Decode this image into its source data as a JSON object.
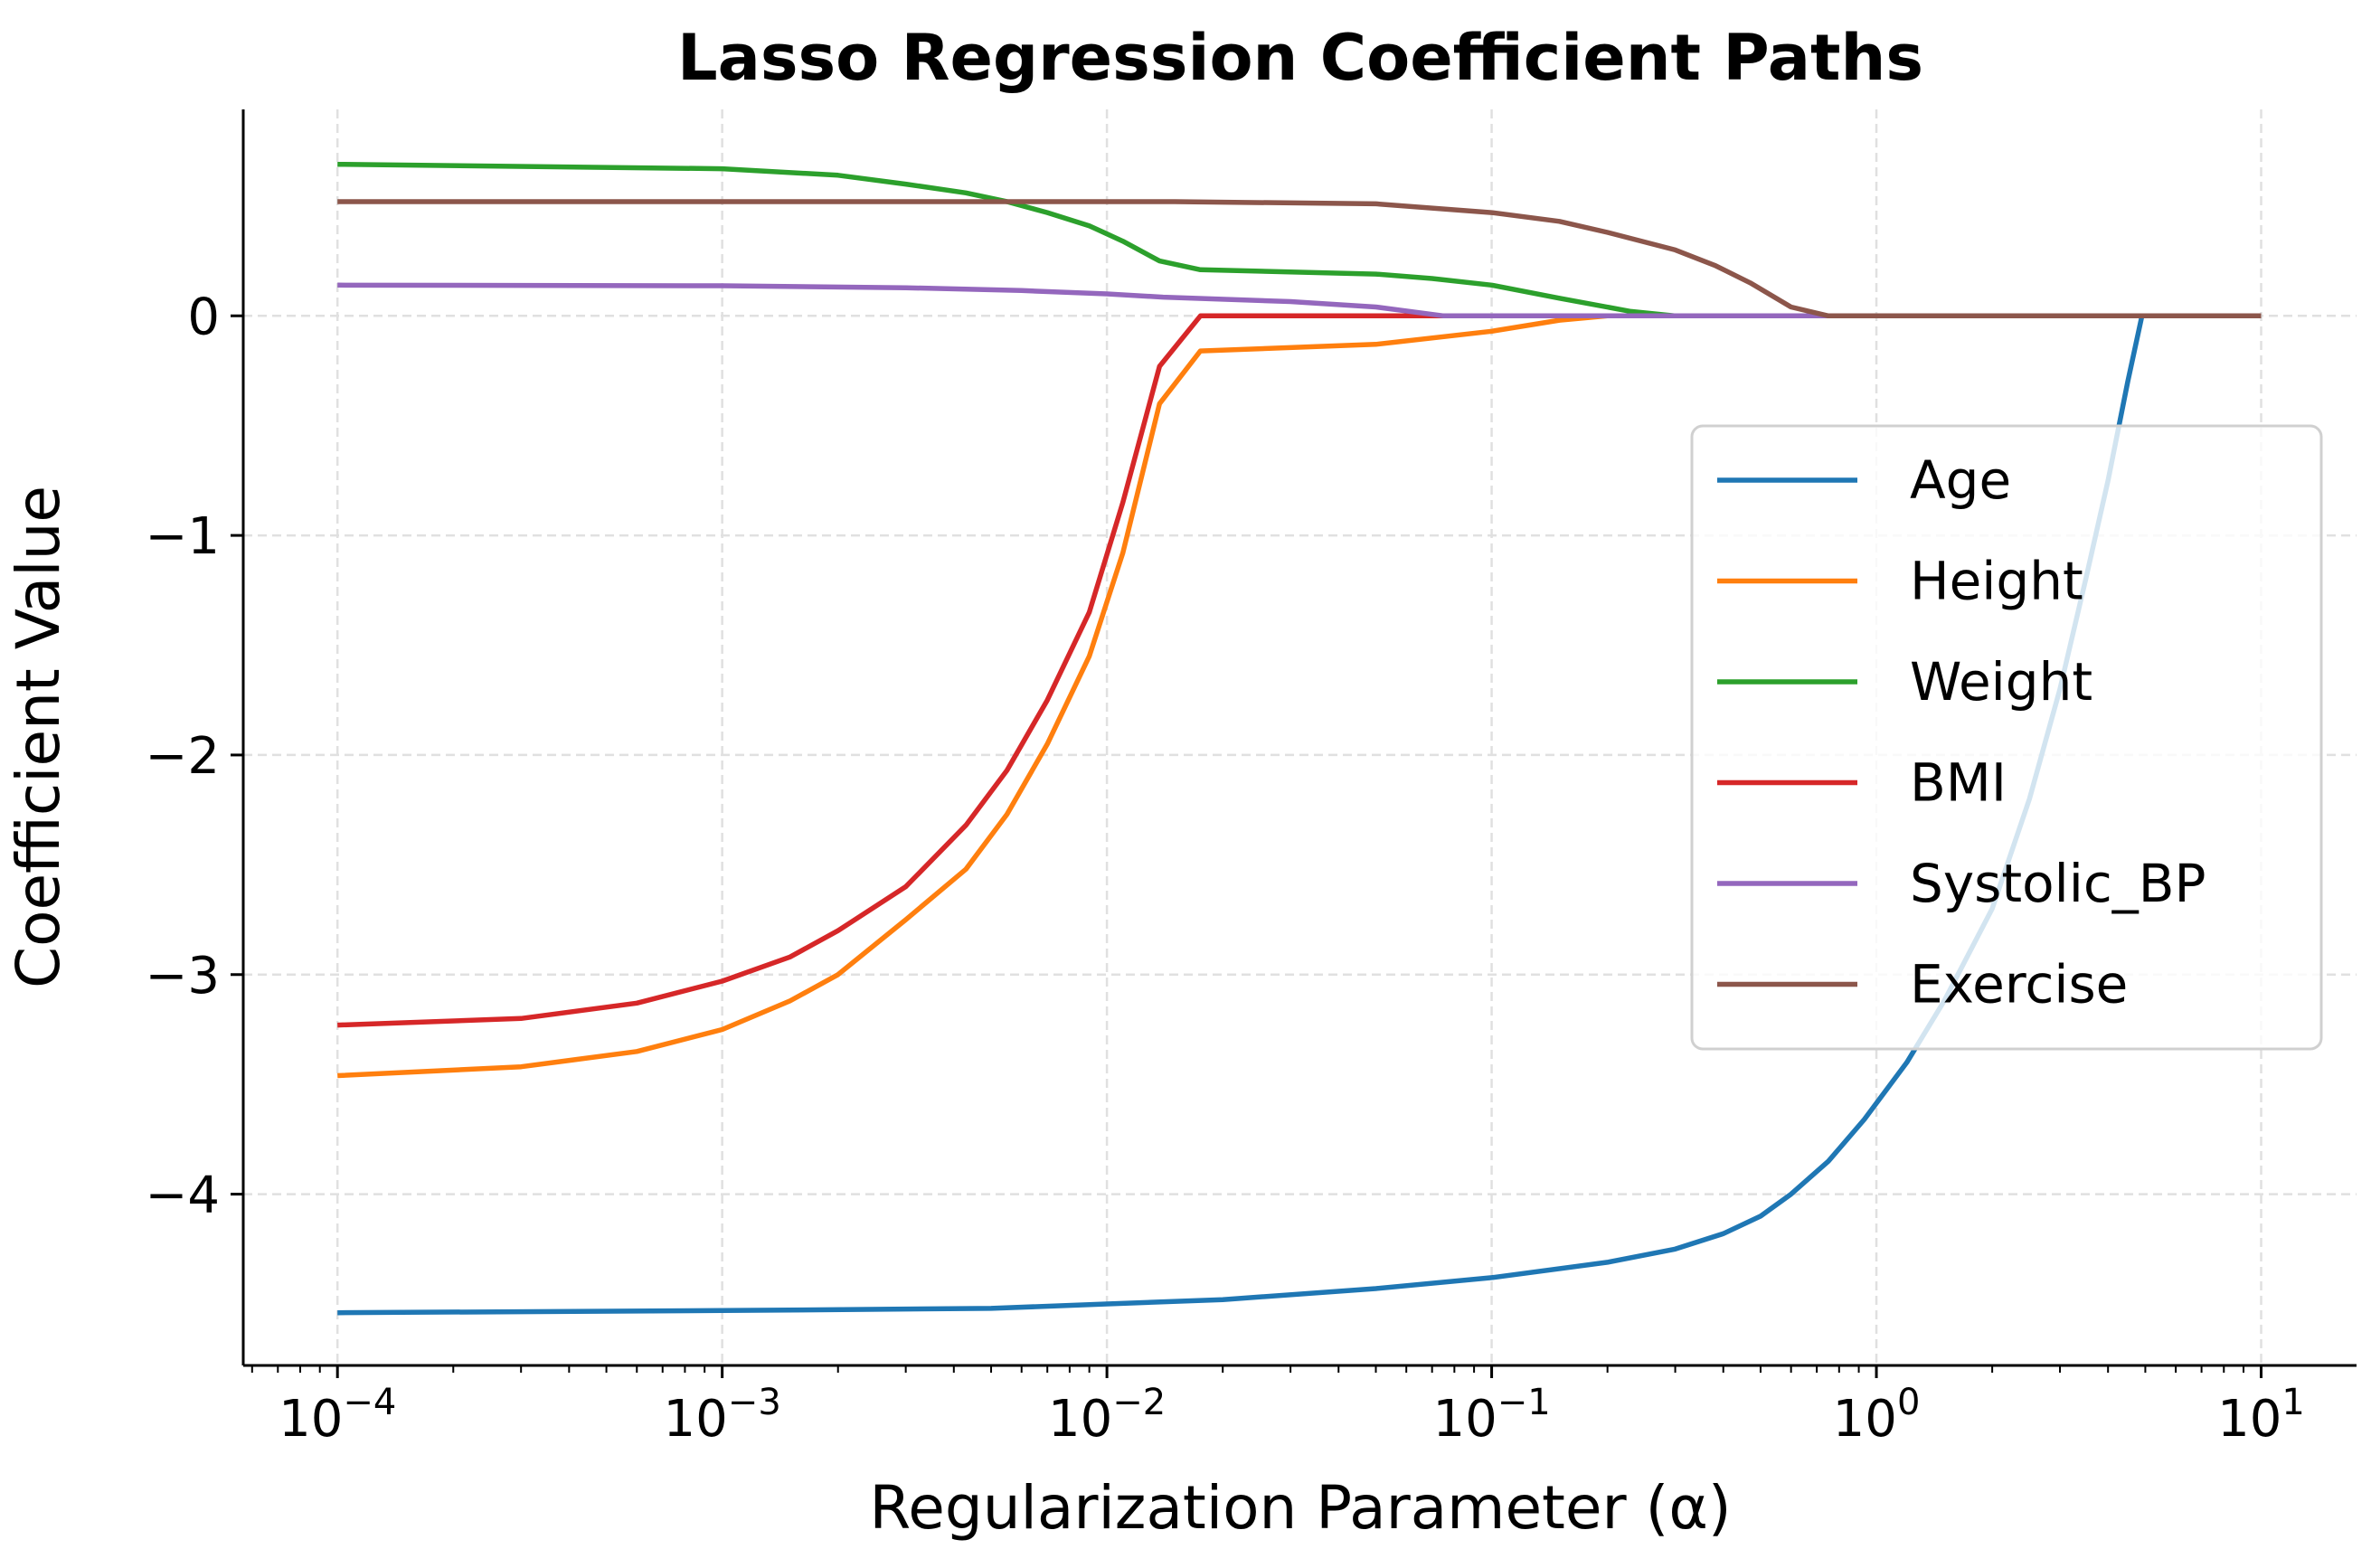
{
  "chart_data": {
    "type": "line",
    "title": "Lasso Regression Coefficient Paths",
    "xlabel": "Regularization Parameter (α)",
    "ylabel": "Coefficient Value",
    "xscale": "log",
    "xlim": [
      5.69e-05,
      17.7
    ],
    "ylim": [
      -4.78,
      0.94
    ],
    "xticks": [
      0.0001,
      0.001,
      0.01,
      0.1,
      1,
      10
    ],
    "xtick_labels": [
      {
        "base": "10",
        "exp": "−4"
      },
      {
        "base": "10",
        "exp": "−3"
      },
      {
        "base": "10",
        "exp": "−2"
      },
      {
        "base": "10",
        "exp": "−1"
      },
      {
        "base": "10",
        "exp": "0"
      },
      {
        "base": "10",
        "exp": "1"
      }
    ],
    "yticks": [
      0,
      -1,
      -2,
      -3,
      -4
    ],
    "ytick_labels": [
      "0",
      "−1",
      "−2",
      "−3",
      "−4"
    ],
    "grid": true,
    "legend_position": "center-right",
    "series": [
      {
        "name": "Age",
        "color": "#1f77b4",
        "x": [
          0.0001,
          0.001,
          0.005,
          0.01,
          0.02,
          0.05,
          0.1,
          0.2,
          0.3,
          0.4,
          0.5,
          0.6,
          0.75,
          0.93,
          1.2,
          1.5,
          2,
          2.5,
          3,
          3.5,
          4,
          4.5,
          4.9,
          10
        ],
        "y": [
          -4.54,
          -4.53,
          -4.52,
          -4.5,
          -4.48,
          -4.43,
          -4.38,
          -4.31,
          -4.25,
          -4.18,
          -4.1,
          -4.0,
          -3.85,
          -3.66,
          -3.4,
          -3.12,
          -2.7,
          -2.2,
          -1.7,
          -1.2,
          -0.75,
          -0.3,
          0,
          0
        ]
      },
      {
        "name": "Height",
        "color": "#ff7f0e",
        "x": [
          0.0001,
          0.0003,
          0.0006,
          0.001,
          0.0015,
          0.002,
          0.003,
          0.0043,
          0.0055,
          0.007,
          0.009,
          0.011,
          0.0137,
          0.0175,
          0.05,
          0.1,
          0.15,
          0.2,
          10
        ],
        "y": [
          -3.46,
          -3.42,
          -3.35,
          -3.25,
          -3.12,
          -3.0,
          -2.75,
          -2.52,
          -2.27,
          -1.95,
          -1.55,
          -1.08,
          -0.4,
          -0.16,
          -0.13,
          -0.07,
          -0.02,
          0,
          0
        ]
      },
      {
        "name": "Weight",
        "color": "#2ca02c",
        "x": [
          0.0001,
          0.001,
          0.002,
          0.003,
          0.0043,
          0.0055,
          0.007,
          0.009,
          0.011,
          0.0137,
          0.0175,
          0.05,
          0.07,
          0.1,
          0.15,
          0.23,
          0.3,
          10
        ],
        "y": [
          0.69,
          0.67,
          0.64,
          0.6,
          0.56,
          0.52,
          0.47,
          0.41,
          0.34,
          0.25,
          0.21,
          0.19,
          0.17,
          0.14,
          0.08,
          0.02,
          0,
          0
        ]
      },
      {
        "name": "BMI",
        "color": "#d62728",
        "x": [
          0.0001,
          0.0003,
          0.0006,
          0.001,
          0.0015,
          0.002,
          0.003,
          0.0043,
          0.0055,
          0.007,
          0.009,
          0.011,
          0.0137,
          0.0175,
          10
        ],
        "y": [
          -3.23,
          -3.2,
          -3.13,
          -3.03,
          -2.92,
          -2.8,
          -2.6,
          -2.32,
          -2.07,
          -1.75,
          -1.35,
          -0.85,
          -0.23,
          0,
          0
        ]
      },
      {
        "name": "Systolic_BP",
        "color": "#9467bd",
        "x": [
          0.0001,
          0.001,
          0.003,
          0.006,
          0.01,
          0.014,
          0.03,
          0.05,
          0.075,
          10
        ],
        "y": [
          0.14,
          0.137,
          0.128,
          0.115,
          0.1,
          0.085,
          0.065,
          0.04,
          0,
          0
        ]
      },
      {
        "name": "Exercise",
        "color": "#8c564b",
        "x": [
          0.0001,
          0.015,
          0.05,
          0.1,
          0.15,
          0.2,
          0.3,
          0.38,
          0.47,
          0.6,
          0.75,
          10
        ],
        "y": [
          0.52,
          0.52,
          0.51,
          0.47,
          0.43,
          0.38,
          0.3,
          0.23,
          0.15,
          0.04,
          0,
          0
        ]
      }
    ]
  }
}
